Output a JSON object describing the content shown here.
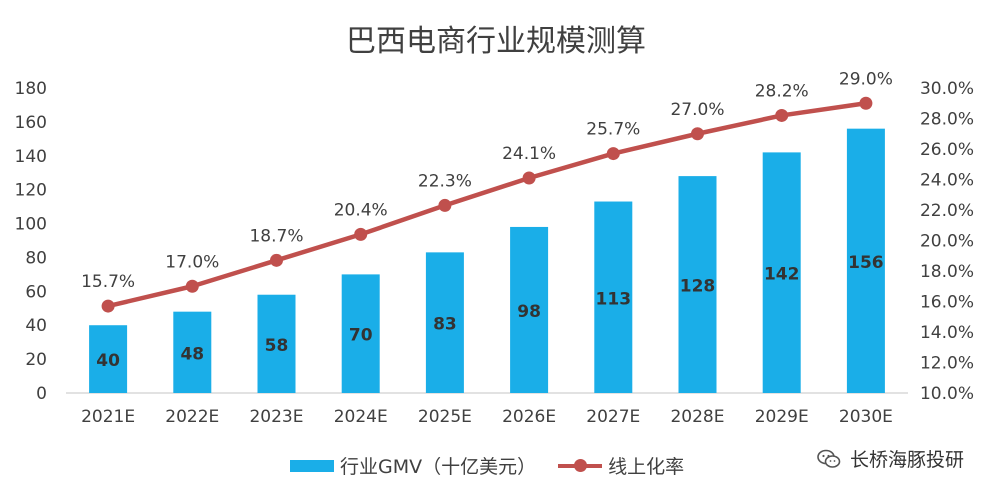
{
  "colors": {
    "bar": "#1aaee8",
    "line": "#c0504d",
    "text": "#404040",
    "grid": "#d9d9d9"
  },
  "chart_data": {
    "type": "bar",
    "title": "巴西电商行业规模测算",
    "categories": [
      "2021E",
      "2022E",
      "2023E",
      "2024E",
      "2025E",
      "2026E",
      "2027E",
      "2028E",
      "2029E",
      "2030E"
    ],
    "series": [
      {
        "name": "行业GMV（十亿美元）",
        "type": "bar",
        "axis": "left",
        "values": [
          40,
          48,
          58,
          70,
          83,
          98,
          113,
          128,
          142,
          156
        ],
        "labels": [
          "40",
          "48",
          "58",
          "70",
          "83",
          "98",
          "113",
          "128",
          "142",
          "156"
        ]
      },
      {
        "name": "线上化率",
        "type": "line",
        "axis": "right",
        "values": [
          15.7,
          17.0,
          18.7,
          20.4,
          22.3,
          24.1,
          25.7,
          27.0,
          28.2,
          29.0
        ],
        "labels": [
          "15.7%",
          "17.0%",
          "18.7%",
          "20.4%",
          "22.3%",
          "24.1%",
          "25.7%",
          "27.0%",
          "28.2%",
          "29.0%"
        ]
      }
    ],
    "y_left": {
      "min": 0,
      "max": 180,
      "ticks": [
        "0",
        "20",
        "40",
        "60",
        "80",
        "100",
        "120",
        "140",
        "160",
        "180"
      ]
    },
    "y_right": {
      "min": 10,
      "max": 30,
      "ticks": [
        "10.0%",
        "12.0%",
        "14.0%",
        "16.0%",
        "18.0%",
        "20.0%",
        "22.0%",
        "24.0%",
        "26.0%",
        "28.0%",
        "30.0%"
      ]
    },
    "legend_position": "bottom",
    "grid": false
  },
  "brand": {
    "label": "长桥海豚投研",
    "icon": "wechat-icon"
  }
}
